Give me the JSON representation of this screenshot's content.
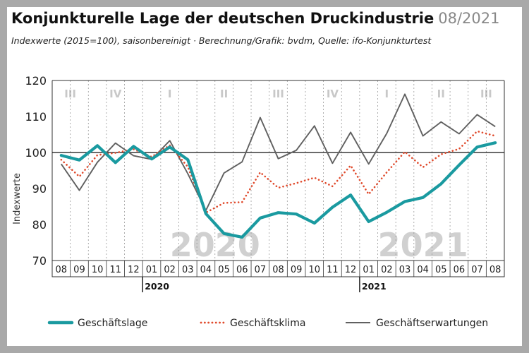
{
  "header": {
    "title": "Konjunkturelle Lage der deutschen Druckindustrie",
    "date": "08/2021",
    "subtitle": "Indexwerte (2015=100), saisonbereinigt · Berechnung/Grafik: bvdm, Quelle: ifo-Konjunkturtest"
  },
  "colors": {
    "lage": "#1a9aa0",
    "klima": "#e04a2c",
    "erwartungen": "#606060",
    "quarter_label": "#c8c8c8",
    "year_watermark": "#d0d0d0",
    "background": "#a9a9a9"
  },
  "chart_data": {
    "type": "line",
    "ylabel": "Indexwerte",
    "ylim": [
      70,
      120
    ],
    "yticks": [
      70,
      80,
      90,
      100,
      110,
      120
    ],
    "reference_line": 100,
    "grid": "vertical dashed per month",
    "legend_position": "bottom",
    "x": [
      "08",
      "09",
      "10",
      "11",
      "12",
      "01",
      "02",
      "03",
      "04",
      "05",
      "06",
      "07",
      "08",
      "09",
      "10",
      "11",
      "12",
      "01",
      "02",
      "03",
      "04",
      "05",
      "06",
      "07",
      "08"
    ],
    "years": [
      {
        "label": "2020",
        "start_index": 5
      },
      {
        "label": "2021",
        "start_index": 17
      }
    ],
    "quarters": [
      {
        "label": "III",
        "start_index": 0,
        "end_index": 1
      },
      {
        "label": "IV",
        "start_index": 2,
        "end_index": 4
      },
      {
        "label": "I",
        "start_index": 5,
        "end_index": 7
      },
      {
        "label": "II",
        "start_index": 8,
        "end_index": 10
      },
      {
        "label": "III",
        "start_index": 11,
        "end_index": 13
      },
      {
        "label": "IV",
        "start_index": 14,
        "end_index": 16
      },
      {
        "label": "I",
        "start_index": 17,
        "end_index": 19
      },
      {
        "label": "II",
        "start_index": 20,
        "end_index": 22
      },
      {
        "label": "III",
        "start_index": 23,
        "end_index": 24
      }
    ],
    "series": [
      {
        "name": "Geschäftslage",
        "key": "lage",
        "style": "solid-thick",
        "values": [
          99.2,
          97.9,
          101.9,
          97.2,
          101.7,
          98.2,
          101.5,
          98.0,
          83.0,
          77.5,
          76.5,
          81.8,
          83.3,
          82.9,
          80.4,
          84.8,
          88.2,
          80.8,
          83.4,
          86.4,
          87.5,
          91.3,
          96.5,
          101.5,
          102.7
        ]
      },
      {
        "name": "Geschäftsklima",
        "key": "klima",
        "style": "dotted",
        "values": [
          98.0,
          93.3,
          99.3,
          99.9,
          100.9,
          98.8,
          102.0,
          96.0,
          83.3,
          86.0,
          86.2,
          94.5,
          90.2,
          91.5,
          93.0,
          90.6,
          96.4,
          88.4,
          94.5,
          100.2,
          95.9,
          99.5,
          101.0,
          105.9,
          104.6
        ]
      },
      {
        "name": "Geschäftserwartungen",
        "key": "erwartungen",
        "style": "solid-thin",
        "values": [
          96.8,
          89.5,
          97.3,
          102.6,
          99.1,
          98.1,
          103.3,
          94.1,
          83.9,
          94.3,
          97.4,
          109.7,
          98.3,
          100.6,
          107.4,
          97.0,
          105.6,
          96.8,
          105.3,
          116.2,
          104.6,
          108.5,
          105.2,
          110.5,
          107.2
        ]
      }
    ]
  }
}
